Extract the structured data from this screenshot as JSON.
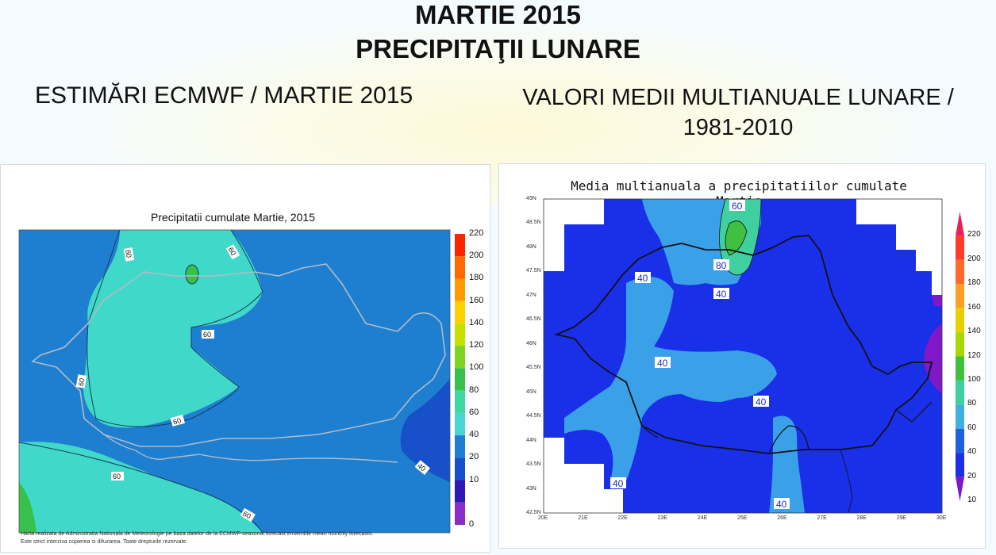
{
  "slide": {
    "title_line1": "MARTIE 2015",
    "title_line2": "PRECIPITAŢII LUNARE",
    "subtitle_left": "ESTIMĂRI ECMWF / MARTIE 2015",
    "subtitle_right_line1": "VALORI MEDII MULTIANUALE LUNARE /",
    "subtitle_right_line2": "1981-2010"
  },
  "left_map": {
    "title": "Precipitatii cumulate Martie, 2015",
    "legend_values": [
      "220",
      "200",
      "180",
      "160",
      "140",
      "120",
      "100",
      "80",
      "60",
      "40",
      "20",
      "10",
      "0"
    ],
    "legend_colors": [
      "#ff2400",
      "#ff6a00",
      "#ff9a00",
      "#ffd000",
      "#c8e000",
      "#7ed321",
      "#36c24a",
      "#40d8a0",
      "#4ad4d4",
      "#1e7ed0",
      "#1750c8",
      "#3018b8",
      "#8a2cc8"
    ],
    "contour_labels": [
      {
        "text": "60"
      },
      {
        "text": "60"
      },
      {
        "text": "60"
      },
      {
        "text": "60"
      },
      {
        "text": "60"
      },
      {
        "text": "60"
      },
      {
        "text": "60"
      },
      {
        "text": "40"
      }
    ],
    "footnote_line1": "Harta realizata de Administratia Nationala de Meteorologie pe baza datelor de la ECMWF-seasonal forecast ensemble mean monthly forecasts.",
    "footnote_line2": "Este strict interzisa copierea si difuzarea. Toate drepturile rezervate."
  },
  "right_map": {
    "title": "Media multianuala a precipitatiilor cumulate Martie",
    "legend_values": [
      "220",
      "200",
      "180",
      "160",
      "140",
      "120",
      "100",
      "80",
      "60",
      "40",
      "20",
      "10"
    ],
    "legend_colors": [
      "#e8205a",
      "#ff3a2a",
      "#ff6a2a",
      "#ffa024",
      "#e6d000",
      "#a8d800",
      "#40c040",
      "#40d0a0",
      "#40b0e0",
      "#2060e0",
      "#1a30e8",
      "#8018c8"
    ],
    "contour_labels": [
      {
        "text": "60"
      },
      {
        "text": "80"
      },
      {
        "text": "40"
      },
      {
        "text": "40"
      },
      {
        "text": "40"
      },
      {
        "text": "40"
      },
      {
        "text": "40"
      },
      {
        "text": "40"
      }
    ],
    "lat_labels": [
      "49N",
      "48.5N",
      "48N",
      "47.5N",
      "47N",
      "46.5N",
      "46N",
      "45.5N",
      "45N",
      "44.5N",
      "44N",
      "43.5N",
      "43N",
      "42.5N"
    ],
    "lon_labels": [
      "20E",
      "21E",
      "22E",
      "23E",
      "24E",
      "25E",
      "26E",
      "27E",
      "28E",
      "29E",
      "30E"
    ]
  }
}
